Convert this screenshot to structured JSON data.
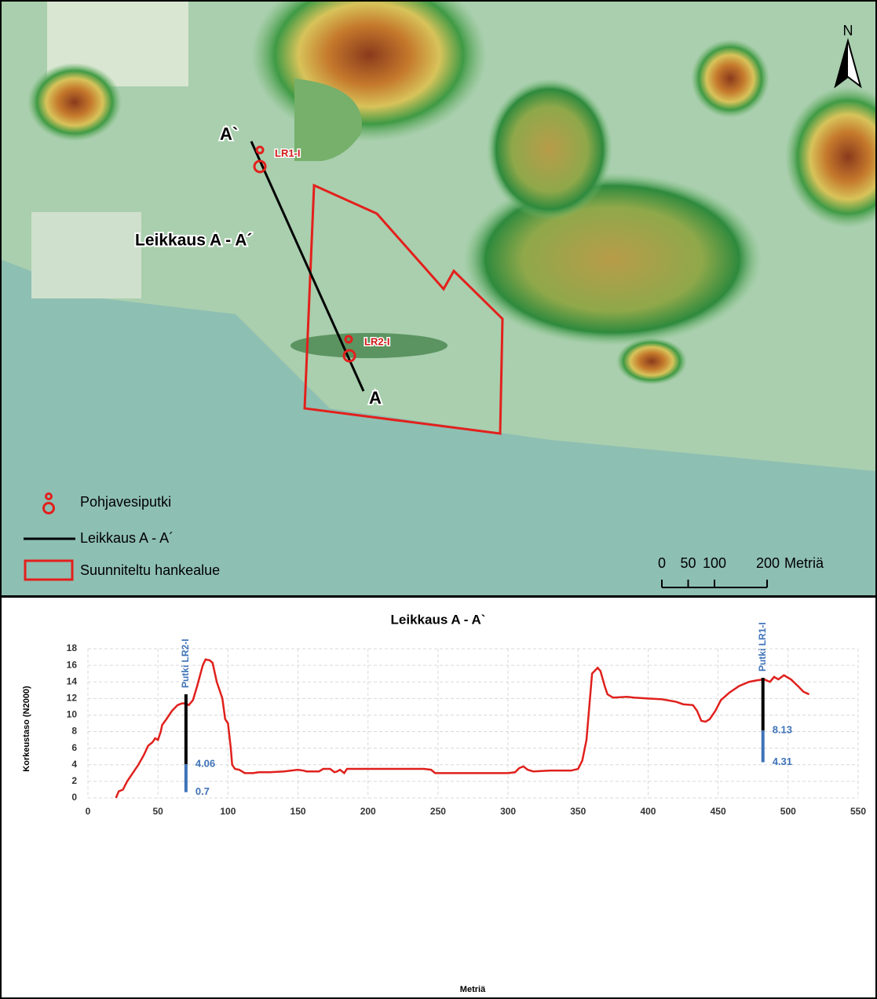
{
  "map": {
    "north_label": "N",
    "section_ends": [
      "A`",
      "A"
    ],
    "section_label": "Leikkaus A - A´",
    "wells": [
      "LR1-I",
      "LR2-I"
    ],
    "legend": [
      "Pohjavesiputki",
      "Leikkaus A - A´",
      "Suunniteltu hankealue"
    ],
    "scale": {
      "ticks": [
        0,
        50,
        100,
        200
      ],
      "unit": "Metriä"
    }
  },
  "chart_data": {
    "type": "line",
    "title": "Leikkaus A - A`",
    "x_label": "Metriä",
    "y_label": "Korkeustaso (N2000)",
    "xlim": [
      0,
      550
    ],
    "xticks": [
      0,
      50,
      100,
      150,
      200,
      250,
      300,
      350,
      400,
      450,
      500,
      550
    ],
    "ylim": [
      0,
      18
    ],
    "yticks": [
      0,
      2,
      4,
      6,
      8,
      10,
      12,
      14,
      16,
      18
    ],
    "grid": true,
    "series": [
      {
        "color": "#e0201c",
        "x": [
          20,
          22,
          25,
          28,
          32,
          36,
          40,
          43,
          46,
          48,
          50,
          52,
          53,
          56,
          60,
          64,
          67,
          70,
          72,
          75,
          78,
          82,
          84,
          87,
          89,
          92,
          96,
          98,
          100,
          102,
          103,
          105,
          108,
          112,
          118,
          122,
          130,
          140,
          150,
          154,
          156,
          165,
          168,
          173,
          176,
          178,
          180,
          183,
          185,
          200,
          220,
          240,
          245,
          248,
          260,
          280,
          300,
          305,
          308,
          311,
          314,
          318,
          330,
          345,
          350,
          353,
          356,
          358,
          360,
          364,
          366,
          369,
          371,
          375,
          385,
          390,
          400,
          410,
          420,
          425,
          432,
          435,
          438,
          441,
          444,
          448,
          452,
          458,
          465,
          472,
          478,
          483,
          487,
          490,
          493,
          497,
          502,
          507,
          511,
          515
        ],
        "values": [
          0,
          0.8,
          1,
          2,
          3,
          4,
          5.2,
          6.3,
          6.7,
          7.2,
          7,
          8,
          8.8,
          9.5,
          10.5,
          11.2,
          11.4,
          11.4,
          11.2,
          11.8,
          13.5,
          16,
          16.7,
          16.6,
          16.3,
          14,
          12,
          9.5,
          9,
          6,
          4,
          3.5,
          3.4,
          3,
          3,
          3.1,
          3.1,
          3.2,
          3.4,
          3.3,
          3.2,
          3.2,
          3.5,
          3.5,
          3.1,
          3.2,
          3.4,
          3,
          3.5,
          3.5,
          3.5,
          3.5,
          3.4,
          3,
          3,
          3,
          3,
          3.1,
          3.6,
          3.8,
          3.4,
          3.2,
          3.3,
          3.3,
          3.5,
          4.5,
          7,
          11,
          15,
          15.7,
          15.3,
          13.5,
          12.5,
          12.1,
          12.2,
          12.1,
          12,
          11.9,
          11.6,
          11.3,
          11.2,
          10.5,
          9.3,
          9.2,
          9.5,
          10.5,
          11.8,
          12.7,
          13.5,
          14,
          14.2,
          14.3,
          14,
          14.6,
          14.3,
          14.8,
          14.3,
          13.5,
          12.8,
          12.5
        ]
      }
    ],
    "wells": [
      {
        "name": "Putki LR2-I",
        "x": 70,
        "casing_top": 12.5,
        "screen_top": 4.06,
        "screen_bottom": 0.7,
        "casing_color": "#000000",
        "screen_color": "#3e72b8"
      },
      {
        "name": "Putki LR1-I",
        "x": 482,
        "casing_top": 14.5,
        "screen_top": 8.13,
        "screen_bottom": 4.31,
        "casing_color": "#000000",
        "screen_color": "#3e72b8"
      }
    ]
  }
}
